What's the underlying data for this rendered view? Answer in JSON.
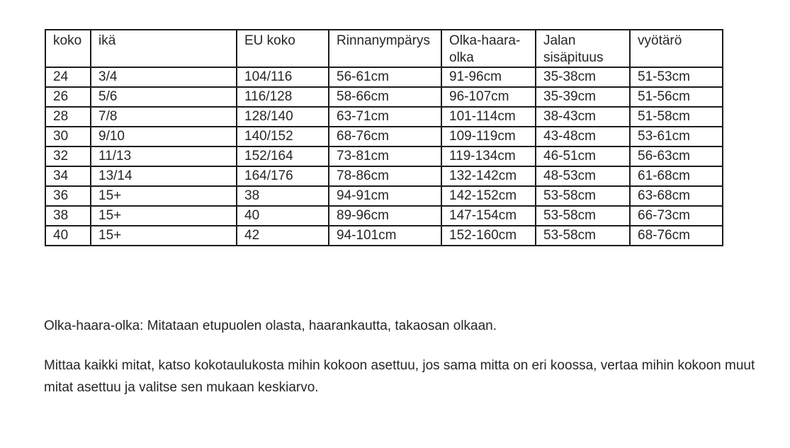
{
  "page": {
    "background_color": "#ffffff",
    "text_color": "#262626",
    "border_color": "#1c1c1c"
  },
  "table": {
    "columns": [
      {
        "key": "koko",
        "label": "koko"
      },
      {
        "key": "ika",
        "label": "ikä"
      },
      {
        "key": "eu-koko",
        "label": "EU koko"
      },
      {
        "key": "rinnanymparys",
        "label": "Rinnanympärys"
      },
      {
        "key": "olka-haara-olka",
        "label": "Olka-haara-olka"
      },
      {
        "key": "jalan-sisapituus",
        "label": "Jalan sisäpituus"
      },
      {
        "key": "vyotaro",
        "label": "vyötärö"
      }
    ],
    "rows": [
      [
        "24",
        "3/4",
        "104/116",
        "56-61cm",
        "91-96cm",
        "35-38cm",
        "51-53cm"
      ],
      [
        "26",
        "5/6",
        "116/128",
        "58-66cm",
        "96-107cm",
        "35-39cm",
        "51-56cm"
      ],
      [
        "28",
        "7/8",
        "128/140",
        "63-71cm",
        "101-114cm",
        "38-43cm",
        "51-58cm"
      ],
      [
        "30",
        "9/10",
        "140/152",
        "68-76cm",
        "109-119cm",
        "43-48cm",
        "53-61cm"
      ],
      [
        "32",
        "11/13",
        "152/164",
        "73-81cm",
        "119-134cm",
        "46-51cm",
        "56-63cm"
      ],
      [
        "34",
        "13/14",
        "164/176",
        "78-86cm",
        "132-142cm",
        "48-53cm",
        "61-68cm"
      ],
      [
        "36",
        "15+",
        "38",
        "94-91cm",
        "142-152cm",
        "53-58cm",
        "63-68cm"
      ],
      [
        "38",
        "15+",
        "40",
        "89-96cm",
        "147-154cm",
        "53-58cm",
        "66-73cm"
      ],
      [
        "40",
        "15+",
        "42",
        "94-101cm",
        "152-160cm",
        "53-58cm",
        "68-76cm"
      ]
    ]
  },
  "notes": {
    "note1": "Olka-haara-olka: Mitataan etupuolen olasta, haarankautta, takaosan olkaan.",
    "note2": "Mittaa kaikki mitat, katso kokotaulukosta mihin kokoon asettuu, jos sama mitta on eri koossa, vertaa mihin kokoon muut mitat asettuu ja valitse sen mukaan keskiarvo."
  }
}
